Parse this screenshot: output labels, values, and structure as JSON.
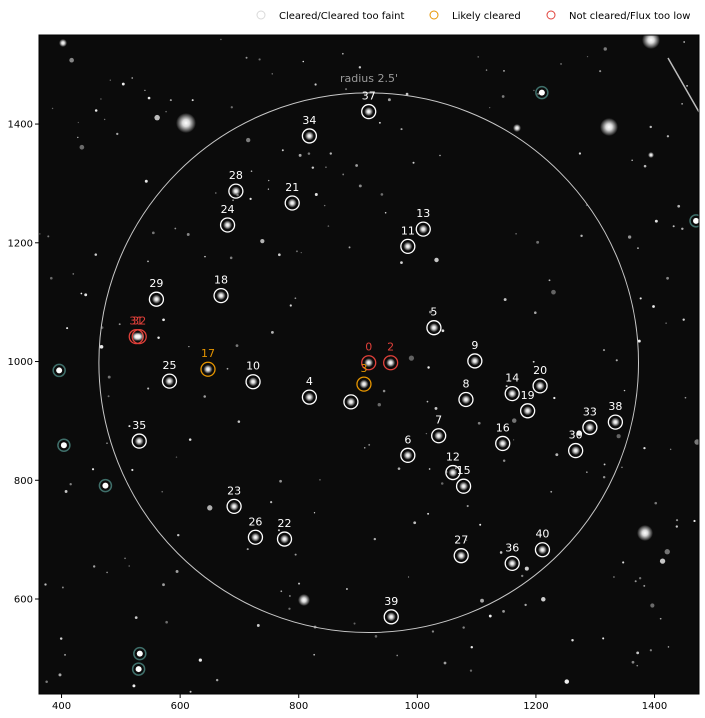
{
  "chart_data": {
    "type": "scatter",
    "title": "",
    "xlabel": "",
    "ylabel": "",
    "xlim": [
      362,
      1475
    ],
    "ylim": [
      440,
      1550
    ],
    "x_ticks": [
      400,
      600,
      800,
      1000,
      1200,
      1400
    ],
    "y_ticks": [
      600,
      800,
      1000,
      1200,
      1400
    ],
    "grid": false,
    "legend_position": "top",
    "legend": [
      {
        "label": "Cleared/Cleared too faint",
        "color": "#d9d9d9"
      },
      {
        "label": "Likely cleared",
        "color": "#e69500"
      },
      {
        "label": "Not cleared/Flux too low",
        "color": "#e0403a"
      }
    ],
    "circle": {
      "center": [
        918,
        998
      ],
      "radius_px": 455,
      "label": "radius 2.5'"
    },
    "colors": {
      "cleared": "#ffffff",
      "likely": "#e69500",
      "not_cleared": "#e0403a",
      "radius_circle": "#c8c8c8",
      "background": "#0b0b0b"
    },
    "sources": [
      {
        "id": "0",
        "x": 918,
        "y": 998,
        "status": "not_cleared"
      },
      {
        "id": "2",
        "x": 955,
        "y": 998,
        "status": "not_cleared"
      },
      {
        "id": "3",
        "x": 910,
        "y": 962,
        "status": "likely"
      },
      {
        "id": "3",
        "x": 888,
        "y": 932,
        "status": "cleared",
        "label": ""
      },
      {
        "id": "4",
        "x": 818,
        "y": 940,
        "status": "cleared"
      },
      {
        "id": "5",
        "x": 1028,
        "y": 1057,
        "status": "cleared"
      },
      {
        "id": "6",
        "x": 984,
        "y": 842,
        "status": "cleared"
      },
      {
        "id": "7",
        "x": 1036,
        "y": 875,
        "status": "cleared"
      },
      {
        "id": "8",
        "x": 1082,
        "y": 936,
        "status": "cleared"
      },
      {
        "id": "9",
        "x": 1097,
        "y": 1001,
        "status": "cleared"
      },
      {
        "id": "10",
        "x": 723,
        "y": 966,
        "status": "cleared"
      },
      {
        "id": "11",
        "x": 984,
        "y": 1194,
        "status": "cleared"
      },
      {
        "id": "12",
        "x": 1060,
        "y": 813,
        "status": "cleared"
      },
      {
        "id": "13",
        "x": 1010,
        "y": 1223,
        "status": "cleared"
      },
      {
        "id": "14",
        "x": 1160,
        "y": 946,
        "status": "cleared"
      },
      {
        "id": "15",
        "x": 1078,
        "y": 790,
        "status": "cleared"
      },
      {
        "id": "16",
        "x": 1144,
        "y": 862,
        "status": "cleared"
      },
      {
        "id": "17",
        "x": 647,
        "y": 987,
        "status": "likely"
      },
      {
        "id": "18",
        "x": 669,
        "y": 1111,
        "status": "cleared"
      },
      {
        "id": "19",
        "x": 1186,
        "y": 917,
        "status": "cleared"
      },
      {
        "id": "20",
        "x": 1207,
        "y": 959,
        "status": "cleared"
      },
      {
        "id": "21",
        "x": 789,
        "y": 1267,
        "status": "cleared"
      },
      {
        "id": "22",
        "x": 776,
        "y": 701,
        "status": "cleared"
      },
      {
        "id": "23",
        "x": 691,
        "y": 756,
        "status": "cleared"
      },
      {
        "id": "24",
        "x": 680,
        "y": 1230,
        "status": "cleared"
      },
      {
        "id": "25",
        "x": 582,
        "y": 967,
        "status": "cleared"
      },
      {
        "id": "26",
        "x": 727,
        "y": 704,
        "status": "cleared"
      },
      {
        "id": "27",
        "x": 1074,
        "y": 673,
        "status": "cleared"
      },
      {
        "id": "28",
        "x": 694,
        "y": 1287,
        "status": "cleared"
      },
      {
        "id": "29",
        "x": 560,
        "y": 1105,
        "status": "cleared"
      },
      {
        "id": "30",
        "x": 1267,
        "y": 850,
        "status": "cleared"
      },
      {
        "id": "31",
        "x": 526,
        "y": 1042,
        "status": "not_cleared"
      },
      {
        "id": "32",
        "x": 531,
        "y": 1042,
        "status": "not_cleared"
      },
      {
        "id": "33",
        "x": 1291,
        "y": 889,
        "status": "cleared"
      },
      {
        "id": "34",
        "x": 818,
        "y": 1380,
        "status": "cleared"
      },
      {
        "id": "35",
        "x": 531,
        "y": 866,
        "status": "cleared"
      },
      {
        "id": "36",
        "x": 1160,
        "y": 660,
        "status": "cleared"
      },
      {
        "id": "37",
        "x": 918,
        "y": 1421,
        "status": "cleared"
      },
      {
        "id": "38",
        "x": 1334,
        "y": 898,
        "status": "cleared"
      },
      {
        "id": "39",
        "x": 956,
        "y": 570,
        "status": "cleared"
      },
      {
        "id": "40",
        "x": 1211,
        "y": 683,
        "status": "cleared"
      }
    ],
    "faint_sources": [
      {
        "x": 396,
        "y": 985
      },
      {
        "x": 404,
        "y": 859
      },
      {
        "x": 474,
        "y": 791
      },
      {
        "x": 532,
        "y": 508
      },
      {
        "x": 530,
        "y": 482
      },
      {
        "x": 1210,
        "y": 1453
      },
      {
        "x": 1470,
        "y": 1237
      }
    ]
  }
}
